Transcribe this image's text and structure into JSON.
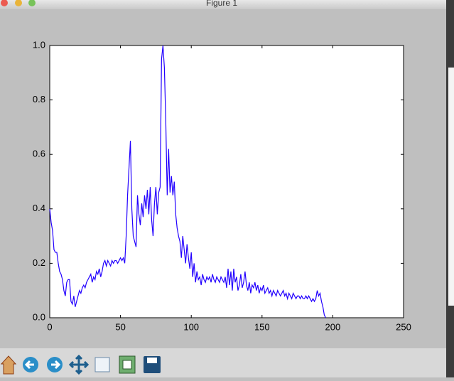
{
  "window": {
    "title": "Figure 1"
  },
  "chart_data": {
    "type": "line",
    "color": "#2200ff",
    "grid": false,
    "xlim": [
      0,
      250
    ],
    "xticks": [
      0,
      50,
      100,
      150,
      200,
      250
    ],
    "ylim": [
      0,
      1
    ],
    "yticks": [
      {
        "value": 0,
        "label": "0.0"
      },
      0.2,
      0.4,
      0.6,
      0.8,
      {
        "value": 1,
        "label": "1.0"
      }
    ],
    "values": [
      0.4,
      0.35,
      0.32,
      0.25,
      0.24,
      0.24,
      0.2,
      0.17,
      0.16,
      0.14,
      0.1,
      0.08,
      0.13,
      0.14,
      0.14,
      0.06,
      0.05,
      0.08,
      0.04,
      0.06,
      0.08,
      0.1,
      0.09,
      0.11,
      0.12,
      0.11,
      0.13,
      0.14,
      0.15,
      0.16,
      0.13,
      0.15,
      0.14,
      0.17,
      0.16,
      0.18,
      0.15,
      0.17,
      0.2,
      0.21,
      0.19,
      0.21,
      0.2,
      0.19,
      0.21,
      0.2,
      0.21,
      0.21,
      0.2,
      0.21,
      0.22,
      0.21,
      0.22,
      0.2,
      0.3,
      0.45,
      0.55,
      0.65,
      0.4,
      0.3,
      0.28,
      0.26,
      0.45,
      0.38,
      0.34,
      0.42,
      0.37,
      0.45,
      0.4,
      0.47,
      0.38,
      0.48,
      0.36,
      0.3,
      0.42,
      0.48,
      0.38,
      0.46,
      0.48,
      0.95,
      1.0,
      0.92,
      0.72,
      0.45,
      0.62,
      0.46,
      0.52,
      0.45,
      0.5,
      0.38,
      0.33,
      0.3,
      0.28,
      0.22,
      0.3,
      0.25,
      0.2,
      0.27,
      0.22,
      0.18,
      0.24,
      0.15,
      0.2,
      0.13,
      0.17,
      0.14,
      0.15,
      0.12,
      0.16,
      0.14,
      0.13,
      0.15,
      0.14,
      0.15,
      0.13,
      0.16,
      0.14,
      0.13,
      0.15,
      0.14,
      0.13,
      0.15,
      0.14,
      0.13,
      0.15,
      0.11,
      0.18,
      0.12,
      0.17,
      0.1,
      0.18,
      0.13,
      0.15,
      0.1,
      0.12,
      0.16,
      0.11,
      0.13,
      0.17,
      0.12,
      0.1,
      0.13,
      0.09,
      0.12,
      0.11,
      0.13,
      0.1,
      0.12,
      0.09,
      0.11,
      0.1,
      0.12,
      0.09,
      0.1,
      0.11,
      0.09,
      0.1,
      0.08,
      0.1,
      0.09,
      0.08,
      0.1,
      0.09,
      0.08,
      0.09,
      0.1,
      0.08,
      0.09,
      0.07,
      0.09,
      0.08,
      0.07,
      0.09,
      0.08,
      0.07,
      0.08,
      0.08,
      0.07,
      0.08,
      0.07,
      0.07,
      0.08,
      0.07,
      0.08,
      0.07,
      0.06,
      0.07,
      0.06,
      0.07,
      0.1,
      0.08,
      0.09,
      0.06,
      0.04,
      0.01,
      0.0
    ]
  }
}
